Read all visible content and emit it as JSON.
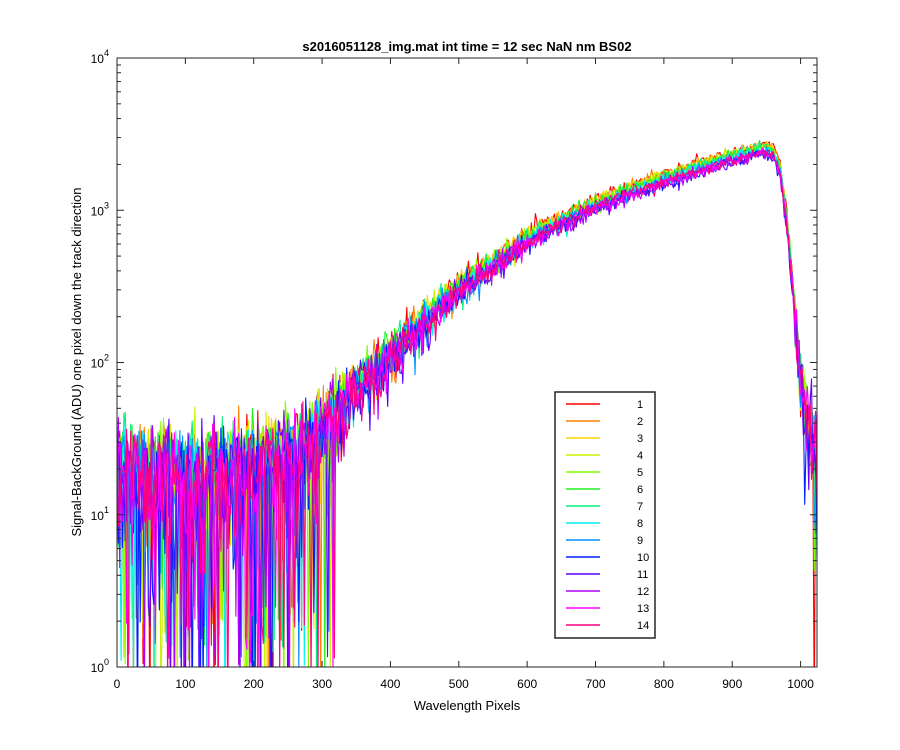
{
  "chart_data": {
    "type": "line",
    "title": "s2016051128_img.mat int time = 12 sec  NaN nm BS02",
    "xlabel": "Wavelength Pixels",
    "ylabel": "Signal-BackGround (ADU) one pixel down the track direction",
    "xlim": [
      0,
      1024
    ],
    "ylim": [
      1,
      10000
    ],
    "yscale": "log",
    "xticks": [
      0,
      100,
      200,
      300,
      400,
      500,
      600,
      700,
      800,
      900,
      1000
    ],
    "yticks": [
      {
        "value": 1,
        "base": "10",
        "exp": "0"
      },
      {
        "value": 10,
        "base": "10",
        "exp": "1"
      },
      {
        "value": 100,
        "base": "10",
        "exp": "2"
      },
      {
        "value": 1000,
        "base": "10",
        "exp": "3"
      },
      {
        "value": 10000,
        "base": "10",
        "exp": "4"
      }
    ],
    "grid": false,
    "legend_position": "lower-right inside",
    "profile": {
      "x": [
        0,
        100,
        200,
        260,
        300,
        350,
        400,
        450,
        500,
        550,
        600,
        650,
        700,
        750,
        800,
        850,
        900,
        930,
        950,
        960,
        970,
        980,
        990,
        1000,
        1010,
        1020,
        1024
      ],
      "y": [
        20,
        18,
        20,
        26,
        38,
        65,
        110,
        185,
        290,
        430,
        620,
        820,
        1050,
        1300,
        1550,
        1850,
        2150,
        2350,
        2450,
        2300,
        1800,
        800,
        250,
        80,
        40,
        28,
        25
      ]
    },
    "series": [
      {
        "name": "1",
        "color": "#ff0000",
        "scale": 1.12
      },
      {
        "name": "2",
        "color": "#ff7f00",
        "scale": 1.1
      },
      {
        "name": "3",
        "color": "#ffd000",
        "scale": 1.09
      },
      {
        "name": "4",
        "color": "#c8f000",
        "scale": 1.08
      },
      {
        "name": "5",
        "color": "#7fff00",
        "scale": 1.07
      },
      {
        "name": "6",
        "color": "#20f020",
        "scale": 1.06
      },
      {
        "name": "7",
        "color": "#00f080",
        "scale": 1.04
      },
      {
        "name": "8",
        "color": "#00f0f0",
        "scale": 1.02
      },
      {
        "name": "9",
        "color": "#0090ff",
        "scale": 1.0
      },
      {
        "name": "10",
        "color": "#0020ff",
        "scale": 0.96
      },
      {
        "name": "11",
        "color": "#6000ff",
        "scale": 0.95
      },
      {
        "name": "12",
        "color": "#b000ff",
        "scale": 0.96
      },
      {
        "name": "13",
        "color": "#ff00ff",
        "scale": 0.98
      },
      {
        "name": "14",
        "color": "#ff0080",
        "scale": 0.99
      }
    ]
  }
}
